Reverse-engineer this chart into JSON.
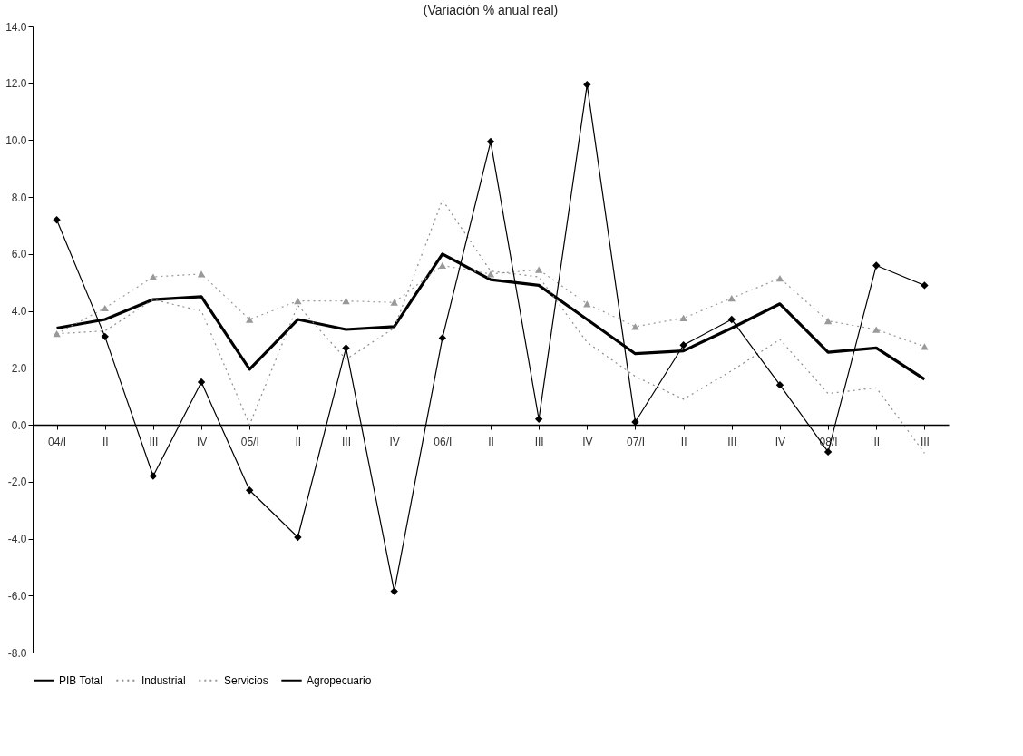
{
  "chart_data": {
    "type": "line",
    "title": "(Variación % anual real)",
    "categories": [
      "04/I",
      "II",
      "III",
      "IV",
      "05/I",
      "II",
      "III",
      "IV",
      "06/I",
      "II",
      "III",
      "IV",
      "07/I",
      "II",
      "III",
      "IV",
      "08/I",
      "II",
      "III"
    ],
    "series": [
      {
        "name": "PIB Total",
        "color": "#000000",
        "line_style": "solid",
        "marker": "none",
        "values": [
          3.4,
          3.7,
          4.4,
          4.5,
          1.95,
          3.7,
          3.35,
          3.45,
          6.0,
          5.1,
          4.9,
          3.7,
          2.5,
          2.6,
          3.4,
          4.25,
          2.55,
          2.7,
          1.6
        ]
      },
      {
        "name": "Industrial",
        "color": "#8c8c8c",
        "line_style": "dotted",
        "marker": "none",
        "values": [
          3.2,
          3.3,
          4.4,
          4.0,
          0.0,
          4.2,
          2.3,
          3.4,
          7.9,
          5.4,
          5.2,
          2.9,
          1.7,
          0.9,
          1.9,
          3.0,
          1.1,
          1.3,
          -1.0
        ]
      },
      {
        "name": "Servicios",
        "color": "#999999",
        "line_style": "dotted",
        "marker": "triangle",
        "values": [
          3.2,
          4.1,
          5.2,
          5.3,
          3.7,
          4.35,
          4.35,
          4.3,
          5.6,
          5.3,
          5.45,
          4.25,
          3.45,
          3.75,
          4.45,
          5.15,
          3.65,
          3.35,
          2.75
        ]
      },
      {
        "name": "Agropecuario",
        "color": "#000000",
        "line_style": "solid",
        "marker": "diamond",
        "values": [
          7.2,
          3.1,
          -1.8,
          1.5,
          -2.3,
          -3.95,
          2.7,
          -5.85,
          3.05,
          9.95,
          0.2,
          11.95,
          0.1,
          2.8,
          3.7,
          1.4,
          -0.95,
          5.6,
          4.9
        ]
      }
    ],
    "ylim": [
      -8,
      14
    ],
    "yticks": [
      {
        "value": -8,
        "label": "-8.0"
      },
      {
        "value": -6,
        "label": "-6.0"
      },
      {
        "value": -4,
        "label": "-4.0"
      },
      {
        "value": -2,
        "label": "-2.0"
      },
      {
        "value": 0,
        "label": "0.0"
      },
      {
        "value": 2,
        "label": "2.0"
      },
      {
        "value": 4,
        "label": "4.0"
      },
      {
        "value": 6,
        "label": "6.0"
      },
      {
        "value": 8,
        "label": "8.0"
      },
      {
        "value": 10,
        "label": "10.0"
      },
      {
        "value": 12,
        "label": "12.0"
      },
      {
        "value": 14,
        "label": "14.0"
      }
    ],
    "grid": false,
    "legend": "bottom"
  }
}
